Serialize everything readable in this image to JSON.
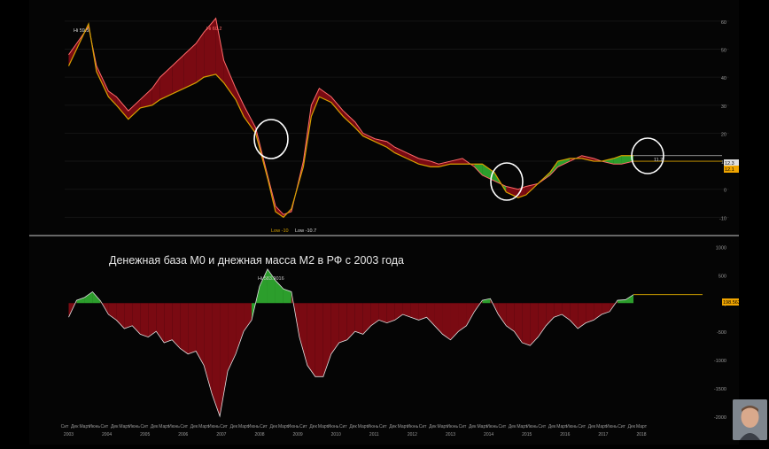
{
  "annotation_title": "Денежная база М0 и днежная масса М2 в РФ с 2003 года",
  "colors": {
    "bg": "#050505",
    "red_area": "#7a0a12",
    "green_area": "#2c9e2c",
    "line_orange": "#d6a000",
    "line_white": "#dddddd",
    "axis_text": "#9a9a9a",
    "circle": "#ffffff",
    "value_label_bg": "#f0a500"
  },
  "chart_data": [
    {
      "type": "area",
      "title": "",
      "ylim": [
        -14,
        65
      ],
      "y_ticks": [
        "60",
        "50",
        "40",
        "30",
        "20",
        "10",
        "0",
        "-10"
      ],
      "series": [
        {
          "name": "",
          "x": [
            2003.7,
            2003.9,
            2004.2,
            2004.4,
            2004.7,
            2004.9,
            2005.2,
            2005.5,
            2005.8,
            2006.0,
            2006.3,
            2006.6,
            2006.9,
            2007.1,
            2007.4,
            2007.6,
            2007.9,
            2008.1,
            2008.4,
            2008.7,
            2008.9,
            2009.1,
            2009.3,
            2009.6,
            2009.8,
            2010.0,
            2010.3,
            2010.6,
            2010.9,
            2011.1,
            2011.4,
            2011.7,
            2011.9,
            2012.2,
            2012.5,
            2012.8,
            2013.0,
            2013.3,
            2013.6,
            2013.9,
            2014.1,
            2014.4,
            2014.7,
            2015.0,
            2015.2,
            2015.5,
            2015.8,
            2016.0,
            2016.3,
            2016.6,
            2016.9,
            2017.1,
            2017.4,
            2017.6,
            2017.9
          ],
          "values": [
            48,
            52,
            58,
            44,
            35,
            33,
            28,
            32,
            36,
            40,
            44,
            48,
            52,
            56,
            61,
            46,
            36,
            30,
            22,
            5,
            -6,
            -9,
            -8,
            10,
            30,
            36,
            33,
            28,
            24,
            20,
            18,
            17,
            15,
            13,
            11,
            10,
            9,
            10,
            11,
            8,
            5,
            3,
            1,
            0,
            1,
            2,
            5,
            8,
            10,
            12,
            11,
            10,
            9,
            9,
            10
          ]
        },
        {
          "name": "",
          "x": [
            2003.7,
            2003.9,
            2004.2,
            2004.4,
            2004.7,
            2004.9,
            2005.2,
            2005.5,
            2005.8,
            2006.0,
            2006.3,
            2006.6,
            2006.9,
            2007.1,
            2007.4,
            2007.6,
            2007.9,
            2008.1,
            2008.4,
            2008.7,
            2008.9,
            2009.1,
            2009.3,
            2009.6,
            2009.8,
            2010.0,
            2010.3,
            2010.6,
            2010.9,
            2011.1,
            2011.4,
            2011.7,
            2011.9,
            2012.2,
            2012.5,
            2012.8,
            2013.0,
            2013.3,
            2013.6,
            2013.9,
            2014.1,
            2014.4,
            2014.7,
            2015.0,
            2015.2,
            2015.5,
            2015.8,
            2016.0,
            2016.3,
            2016.6,
            2016.9,
            2017.1,
            2017.4,
            2017.6,
            2017.9
          ],
          "values": [
            44,
            50,
            59,
            42,
            33,
            30,
            25,
            29,
            30,
            32,
            34,
            36,
            38,
            40,
            41,
            38,
            32,
            26,
            20,
            4,
            -8,
            -10,
            -7,
            8,
            26,
            33,
            31,
            26,
            22,
            19,
            17,
            15,
            13,
            11,
            9,
            8,
            8,
            9,
            9,
            9,
            9,
            6,
            -1,
            -3,
            -2,
            2,
            6,
            10,
            11,
            11,
            10,
            10,
            11,
            12,
            12
          ]
        }
      ],
      "annotations": [
        "Hi 59.5",
        "Hi 60.2",
        "Low -10",
        "Low -10.7",
        "12.3",
        "12.1",
        "11.2"
      ]
    },
    {
      "type": "area",
      "title": "",
      "ylim": [
        -2000,
        1100
      ],
      "y_ticks": [
        "1000",
        "500",
        "0",
        "-500",
        "-1000",
        "-1500",
        "-2000"
      ],
      "series": [
        {
          "name": "",
          "x": [
            2003.7,
            2003.9,
            2004.1,
            2004.3,
            2004.5,
            2004.7,
            2004.9,
            2005.1,
            2005.3,
            2005.5,
            2005.7,
            2005.9,
            2006.1,
            2006.3,
            2006.5,
            2006.7,
            2006.9,
            2007.1,
            2007.3,
            2007.5,
            2007.7,
            2007.9,
            2008.1,
            2008.3,
            2008.5,
            2008.7,
            2008.9,
            2009.1,
            2009.3,
            2009.5,
            2009.7,
            2009.9,
            2010.1,
            2010.3,
            2010.5,
            2010.7,
            2010.9,
            2011.1,
            2011.3,
            2011.5,
            2011.7,
            2011.9,
            2012.1,
            2012.3,
            2012.5,
            2012.7,
            2012.9,
            2013.1,
            2013.3,
            2013.5,
            2013.7,
            2013.9,
            2014.1,
            2014.3,
            2014.5,
            2014.7,
            2014.9,
            2015.1,
            2015.3,
            2015.5,
            2015.7,
            2015.9,
            2016.1,
            2016.3,
            2016.5,
            2016.7,
            2016.9,
            2017.1,
            2017.3,
            2017.5,
            2017.7,
            2017.9
          ],
          "values": [
            -250,
            50,
            100,
            200,
            40,
            -200,
            -300,
            -450,
            -400,
            -550,
            -600,
            -500,
            -700,
            -650,
            -800,
            -900,
            -850,
            -1100,
            -1600,
            -2000,
            -1200,
            -900,
            -500,
            -300,
            300,
            600,
            400,
            250,
            200,
            -600,
            -1100,
            -1300,
            -1300,
            -900,
            -700,
            -650,
            -500,
            -550,
            -400,
            -300,
            -350,
            -300,
            -200,
            -250,
            -300,
            -250,
            -400,
            -550,
            -650,
            -500,
            -400,
            -150,
            50,
            80,
            -200,
            -400,
            -500,
            -700,
            -750,
            -600,
            -400,
            -250,
            -200,
            -300,
            -450,
            -350,
            -300,
            -200,
            -150,
            50,
            60,
            150
          ]
        }
      ],
      "annotations": [
        "Hi 583.9016",
        "198.562"
      ]
    }
  ],
  "x_axis": {
    "month_labels": [
      "Сит",
      "Дек",
      "Март",
      "Июнь",
      "Сит",
      "Дек",
      "Март",
      "Июнь",
      "Сит",
      "Дек",
      "Март",
      "Июнь",
      "Сит",
      "Дек",
      "Март",
      "Июнь",
      "Сит",
      "Дек",
      "Март",
      "Июнь",
      "Сит",
      "Дек",
      "Март",
      "Июнь",
      "Сит",
      "Дек",
      "Март",
      "Июнь",
      "Сит",
      "Дек",
      "Март",
      "Июнь",
      "Сит",
      "Дек",
      "Март",
      "Июнь",
      "Сит",
      "Дек",
      "Март",
      "Июнь",
      "Сит",
      "Дек",
      "Март",
      "Июнь",
      "Сит",
      "Дек",
      "Март",
      "Июнь",
      "Сит",
      "Дек",
      "Март",
      "Июнь",
      "Сит",
      "Дек",
      "Март",
      "Июнь",
      "Сит",
      "Дек",
      "Март",
      "Июнь",
      "Сит",
      "Дек"
    ],
    "year_labels": [
      "2003",
      "2004",
      "2005",
      "2006",
      "2007",
      "2008",
      "2009",
      "2010",
      "2011",
      "2012",
      "2013",
      "2014",
      "2015",
      "2016",
      "2017",
      "2018"
    ]
  },
  "highlight_circles": [
    "circle-2008",
    "circle-2014",
    "circle-2017"
  ]
}
